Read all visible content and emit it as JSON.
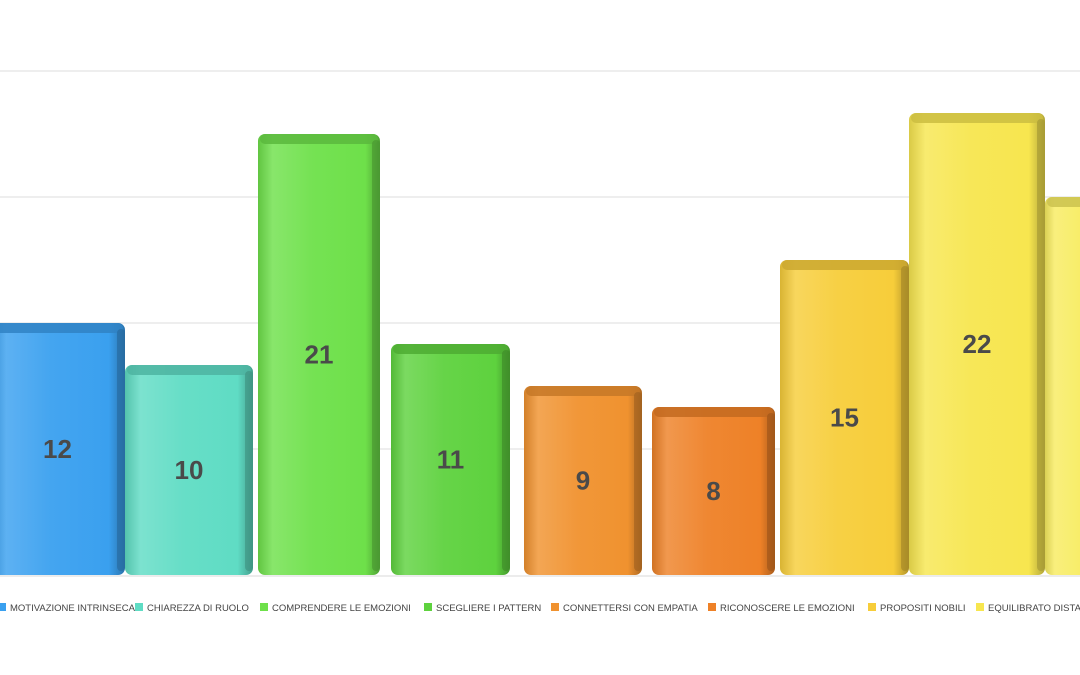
{
  "chart_data": {
    "type": "bar",
    "categories": [
      "MOTIVAZIONE INTRINSECA",
      "CHIAREZZA DI RUOLO",
      "COMPRENDERE LE EMOZIONI",
      "SCEGLIERE I PATTERN",
      "CONNETTERSI CON EMPATIA",
      "RICONOSCERE LE EMOZIONI",
      "PROPOSITI NOBILI",
      "EQUILIBRATO DISTACCO"
    ],
    "values": [
      12,
      10,
      21,
      11,
      9,
      8,
      15,
      22
    ],
    "partial_values": [
      18
    ],
    "data_labels": [
      "12",
      "10",
      "21",
      "11",
      "9",
      "8",
      "15",
      "22"
    ],
    "colors": [
      "#3aa0ef",
      "#5fdcc4",
      "#6ee04a",
      "#5ed23e",
      "#f0922f",
      "#ee8127",
      "#f7cd3a",
      "#f7e64f",
      "#f8ec60"
    ],
    "ylim": [
      0,
      24
    ],
    "grid": true,
    "legend_position": "bottom"
  }
}
